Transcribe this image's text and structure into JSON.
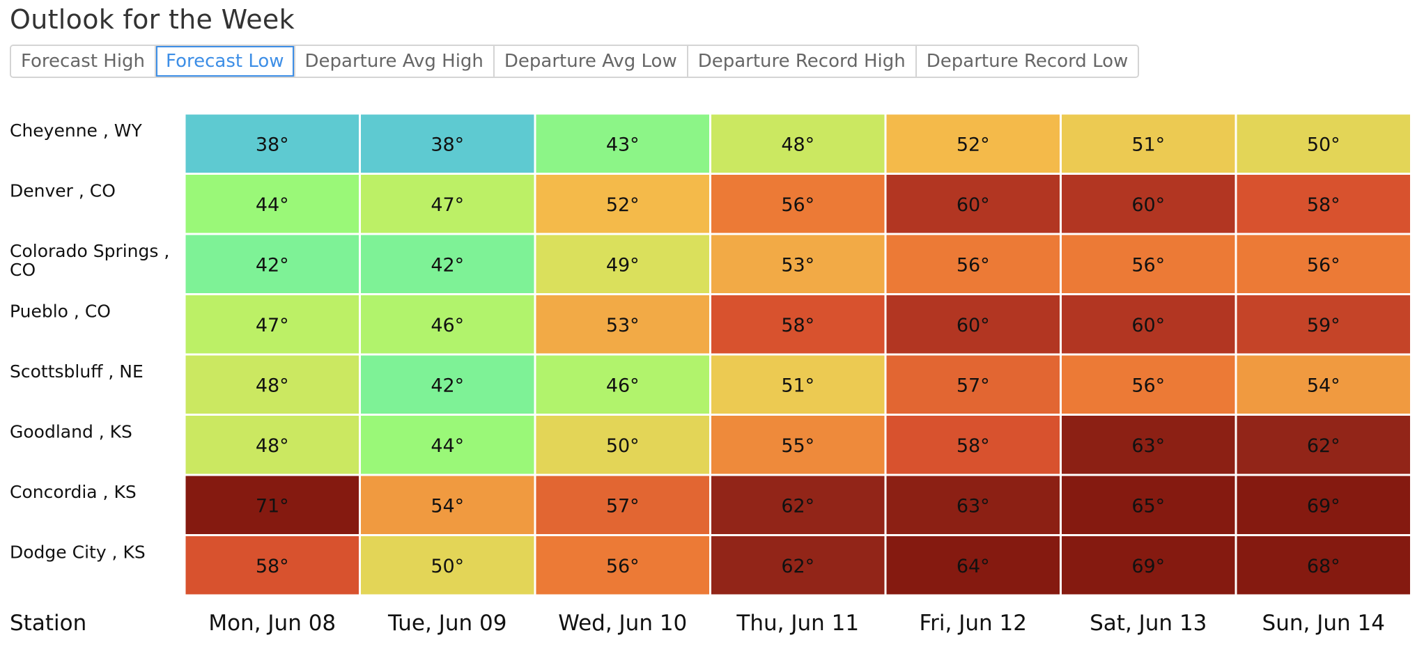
{
  "title": "Outlook for the Week",
  "tabs": [
    {
      "label": "Forecast High",
      "active": false
    },
    {
      "label": "Forecast Low",
      "active": true
    },
    {
      "label": "Departure Avg High",
      "active": false
    },
    {
      "label": "Departure Avg Low",
      "active": false
    },
    {
      "label": "Departure Record High",
      "active": false
    },
    {
      "label": "Departure Record Low",
      "active": false
    }
  ],
  "chart_data": {
    "type": "heatmap",
    "xlabel": "Station",
    "value_suffix": "°",
    "columns": [
      "Mon, Jun 08",
      "Tue, Jun 09",
      "Wed, Jun 10",
      "Thu, Jun 11",
      "Fri, Jun 12",
      "Sat, Jun 13",
      "Sun, Jun 14"
    ],
    "rows": [
      {
        "station": "Cheyenne , WY",
        "values": [
          38,
          38,
          43,
          48,
          52,
          51,
          50
        ]
      },
      {
        "station": "Denver , CO",
        "values": [
          44,
          47,
          52,
          56,
          60,
          60,
          58
        ]
      },
      {
        "station": "Colorado Springs , CO",
        "values": [
          42,
          42,
          49,
          53,
          56,
          56,
          56
        ]
      },
      {
        "station": "Pueblo , CO",
        "values": [
          47,
          46,
          53,
          58,
          60,
          60,
          59
        ]
      },
      {
        "station": "Scottsbluff , NE",
        "values": [
          48,
          42,
          46,
          51,
          57,
          56,
          54
        ]
      },
      {
        "station": "Goodland , KS",
        "values": [
          48,
          44,
          50,
          55,
          58,
          63,
          62
        ]
      },
      {
        "station": "Concordia , KS",
        "values": [
          71,
          54,
          57,
          62,
          63,
          65,
          69
        ]
      },
      {
        "station": "Dodge City , KS",
        "values": [
          58,
          50,
          56,
          62,
          64,
          69,
          68
        ]
      }
    ],
    "color_scale": [
      {
        "value": 38,
        "color": "#5ecad1"
      },
      {
        "value": 42,
        "color": "#7ef296"
      },
      {
        "value": 44,
        "color": "#9af878"
      },
      {
        "value": 47,
        "color": "#bcf066"
      },
      {
        "value": 49,
        "color": "#dae05c"
      },
      {
        "value": 51,
        "color": "#ecca52"
      },
      {
        "value": 52,
        "color": "#f4ba4a"
      },
      {
        "value": 53,
        "color": "#f2aa46"
      },
      {
        "value": 54,
        "color": "#f09a40"
      },
      {
        "value": 56,
        "color": "#ec7a36"
      },
      {
        "value": 58,
        "color": "#d8522e"
      },
      {
        "value": 60,
        "color": "#b23622"
      },
      {
        "value": 62,
        "color": "#922518"
      },
      {
        "value": 64,
        "color": "#851a10"
      }
    ]
  }
}
